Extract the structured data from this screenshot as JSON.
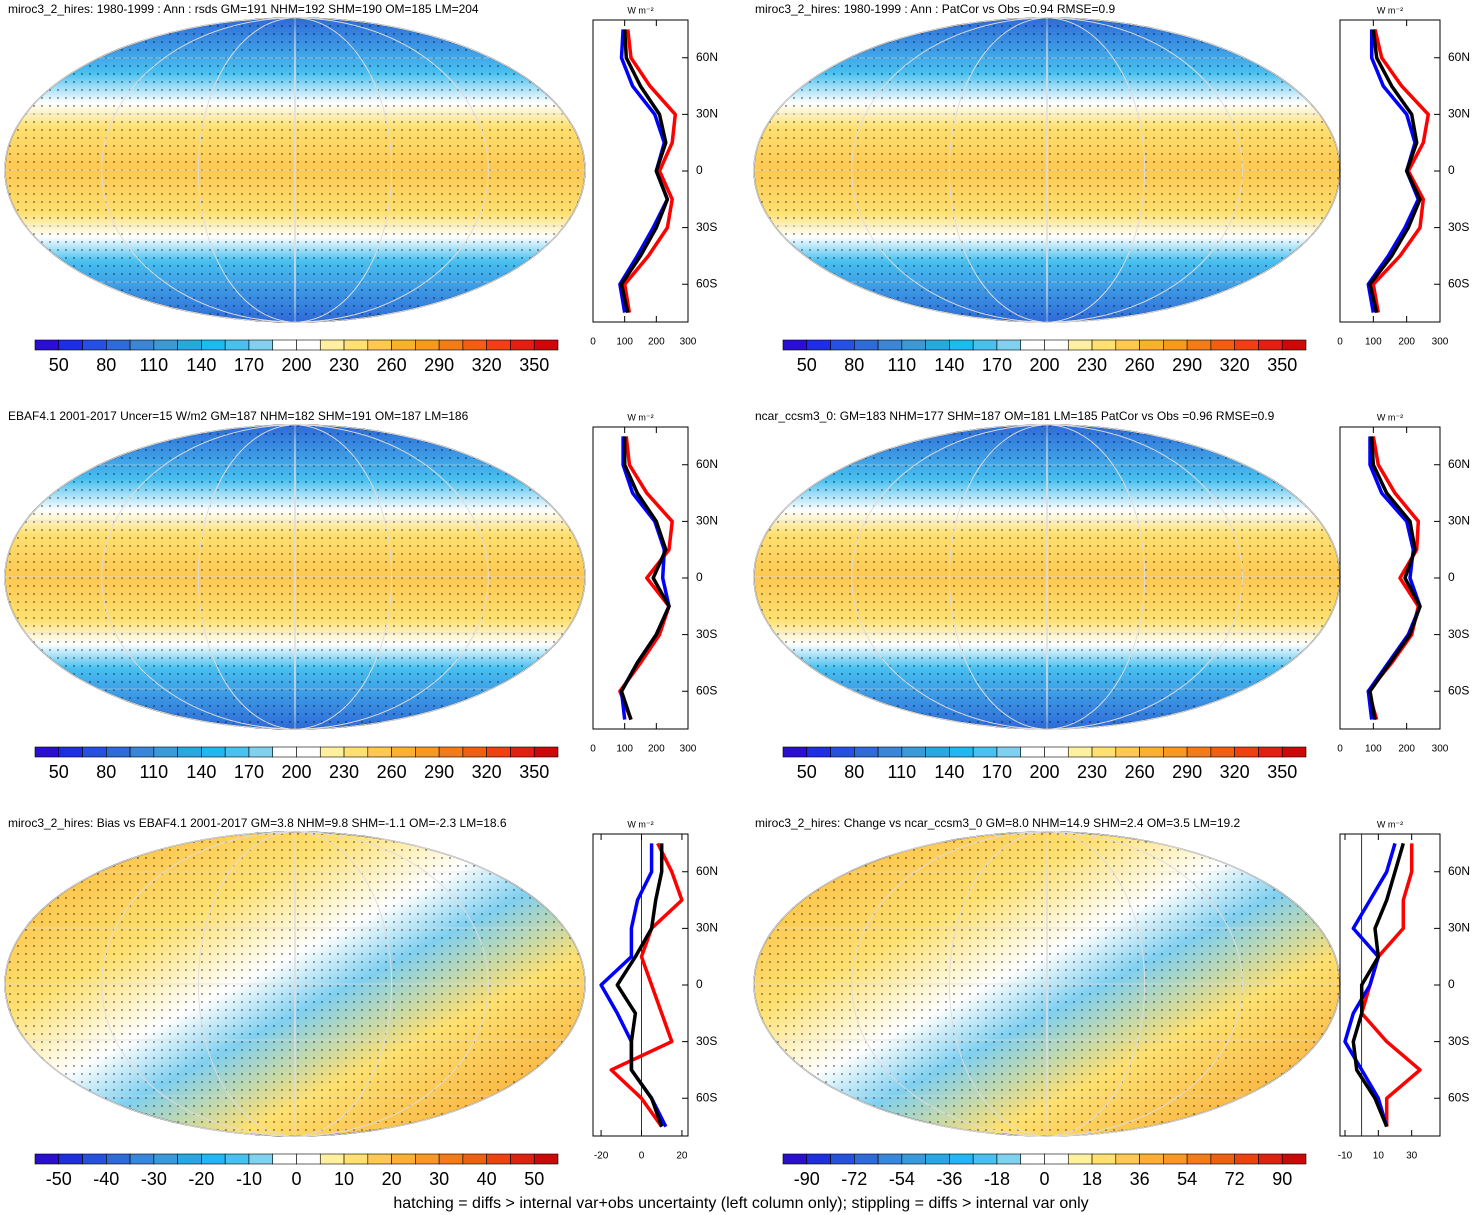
{
  "chart_data": [
    {
      "type": "line",
      "title": "miroc3_2_hires: 1980-1999 : Ann : rsds GM=191 NHM=192 SHM=190 OM=185 LM=204",
      "units": "W m⁻²",
      "colorbar_labels": [
        50,
        80,
        110,
        140,
        170,
        200,
        230,
        260,
        290,
        320,
        350
      ],
      "y": [
        75,
        60,
        45,
        30,
        15,
        0,
        -15,
        -30,
        -45,
        -60,
        -75
      ],
      "ylim": [
        -80,
        80
      ],
      "yticks": [
        {
          "value": 60,
          "label": "60N"
        },
        {
          "value": 30,
          "label": "30N"
        },
        0,
        {
          "value": -30,
          "label": "30S"
        },
        {
          "value": -60,
          "label": "60S"
        }
      ],
      "xlim": [
        0,
        300
      ],
      "xticks": [
        0,
        100,
        200,
        300
      ],
      "series": [
        {
          "color": "#ff0000",
          "values": [
            110,
            120,
            180,
            260,
            250,
            210,
            250,
            235,
            175,
            100,
            115
          ]
        },
        {
          "color": "#0000ff",
          "values": [
            95,
            90,
            125,
            195,
            225,
            200,
            235,
            190,
            140,
            85,
            100
          ]
        },
        {
          "color": "#000000",
          "values": [
            100,
            105,
            150,
            210,
            230,
            200,
            235,
            200,
            150,
            90,
            110
          ]
        }
      ]
    },
    {
      "type": "line",
      "title": "miroc3_2_hires: 1980-1999 : Ann : PatCor vs Obs =0.94 RMSE=0.9",
      "units": "W m⁻²",
      "colorbar_labels": [
        50,
        80,
        110,
        140,
        170,
        200,
        230,
        260,
        290,
        320,
        350
      ],
      "y": [
        75,
        60,
        45,
        30,
        15,
        0,
        -15,
        -30,
        -45,
        -60,
        -75
      ],
      "ylim": [
        -80,
        80
      ],
      "yticks": [
        {
          "value": 60,
          "label": "60N"
        },
        {
          "value": 30,
          "label": "30N"
        },
        0,
        {
          "value": -30,
          "label": "30S"
        },
        {
          "value": -60,
          "label": "60S"
        }
      ],
      "xlim": [
        0,
        300
      ],
      "xticks": [
        0,
        100,
        200,
        300
      ],
      "series": [
        {
          "color": "#ff0000",
          "values": [
            105,
            125,
            185,
            265,
            250,
            205,
            250,
            240,
            180,
            100,
            115
          ]
        },
        {
          "color": "#0000ff",
          "values": [
            95,
            95,
            130,
            200,
            225,
            200,
            235,
            195,
            145,
            85,
            100
          ]
        },
        {
          "color": "#000000",
          "values": [
            100,
            110,
            155,
            215,
            230,
            200,
            240,
            205,
            155,
            90,
            110
          ]
        }
      ]
    },
    {
      "type": "line",
      "title": "EBAF4.1 2001-2017 Uncer=15 W/m2 GM=187 NHM=182 SHM=191 OM=187 LM=186",
      "units": "W m⁻²",
      "colorbar_labels": [
        50,
        80,
        110,
        140,
        170,
        200,
        230,
        260,
        290,
        320,
        350
      ],
      "y": [
        75,
        60,
        45,
        30,
        15,
        0,
        -15,
        -30,
        -45,
        -60,
        -75
      ],
      "ylim": [
        -80,
        80
      ],
      "yticks": [
        {
          "value": 60,
          "label": "60N"
        },
        {
          "value": 30,
          "label": "30N"
        },
        0,
        {
          "value": -30,
          "label": "30S"
        },
        {
          "value": -60,
          "label": "60S"
        }
      ],
      "xlim": [
        0,
        300
      ],
      "xticks": [
        0,
        100,
        200,
        300
      ],
      "series": [
        {
          "color": "#ff0000",
          "values": [
            105,
            115,
            170,
            250,
            240,
            170,
            240,
            210,
            150,
            85,
            120
          ]
        },
        {
          "color": "#0000ff",
          "values": [
            95,
            95,
            125,
            195,
            225,
            220,
            240,
            200,
            140,
            90,
            100
          ]
        },
        {
          "color": "#000000",
          "values": [
            100,
            100,
            140,
            200,
            230,
            190,
            240,
            200,
            140,
            90,
            120
          ]
        }
      ]
    },
    {
      "type": "line",
      "title": "ncar_ccsm3_0: GM=183 NHM=177 SHM=187 OM=181 LM=185 PatCor vs Obs =0.96 RMSE=0.9",
      "units": "W m⁻²",
      "colorbar_labels": [
        50,
        80,
        110,
        140,
        170,
        200,
        230,
        260,
        290,
        320,
        350
      ],
      "y": [
        75,
        60,
        45,
        30,
        15,
        0,
        -15,
        -30,
        -45,
        -60,
        -75
      ],
      "ylim": [
        -80,
        80
      ],
      "yticks": [
        {
          "value": 60,
          "label": "60N"
        },
        {
          "value": 30,
          "label": "30N"
        },
        0,
        {
          "value": -30,
          "label": "30S"
        },
        {
          "value": -60,
          "label": "60S"
        }
      ],
      "xlim": [
        0,
        300
      ],
      "xticks": [
        0,
        100,
        200,
        300
      ],
      "series": [
        {
          "color": "#ff0000",
          "values": [
            100,
            115,
            165,
            235,
            230,
            180,
            235,
            215,
            155,
            85,
            110
          ]
        },
        {
          "color": "#0000ff",
          "values": [
            90,
            90,
            125,
            200,
            220,
            210,
            240,
            205,
            145,
            85,
            95
          ]
        },
        {
          "color": "#000000",
          "values": [
            95,
            100,
            140,
            210,
            225,
            195,
            240,
            210,
            150,
            90,
            105
          ]
        }
      ]
    },
    {
      "type": "line",
      "title": "miroc3_2_hires: Bias vs EBAF4.1 2001-2017 GM=3.8 NHM=9.8 SHM=-1.1 OM=-2.3 LM=18.6",
      "units": "W m⁻²",
      "colorbar_labels": [
        -50,
        -40,
        -30,
        -20,
        -10,
        0,
        10,
        20,
        30,
        40,
        50
      ],
      "y": [
        75,
        60,
        45,
        30,
        15,
        0,
        -15,
        -30,
        -45,
        -60,
        -75
      ],
      "ylim": [
        -80,
        80
      ],
      "yticks": [
        {
          "value": 60,
          "label": "60N"
        },
        {
          "value": 30,
          "label": "30N"
        },
        0,
        {
          "value": -30,
          "label": "30S"
        },
        {
          "value": -60,
          "label": "60S"
        }
      ],
      "xlim": [
        -24,
        23
      ],
      "xticks": [
        -20,
        0,
        20
      ],
      "series": [
        {
          "color": "#ff0000",
          "values": [
            8,
            15,
            20,
            5,
            0,
            5,
            10,
            15,
            -15,
            0,
            10
          ]
        },
        {
          "color": "#0000ff",
          "values": [
            5,
            5,
            -2,
            -5,
            -5,
            -20,
            -12,
            -5,
            -5,
            5,
            12
          ]
        },
        {
          "color": "#000000",
          "values": [
            10,
            10,
            7,
            5,
            -3,
            -12,
            -3,
            -5,
            -5,
            5,
            10
          ]
        }
      ]
    },
    {
      "type": "line",
      "title": "miroc3_2_hires: Change vs ncar_ccsm3_0 GM=8.0 NHM=14.9 SHM=2.4 OM=3.5 LM=19.2",
      "units": "W m⁻²",
      "colorbar_labels": [
        -90,
        -72,
        -54,
        -36,
        -18,
        0,
        18,
        36,
        54,
        72,
        90
      ],
      "y": [
        75,
        60,
        45,
        30,
        15,
        0,
        -15,
        -30,
        -45,
        -60,
        -75
      ],
      "ylim": [
        -80,
        80
      ],
      "yticks": [
        {
          "value": 60,
          "label": "60N"
        },
        {
          "value": 30,
          "label": "30N"
        },
        0,
        {
          "value": -30,
          "label": "30S"
        },
        {
          "value": -60,
          "label": "60S"
        }
      ],
      "xlim": [
        -13,
        47
      ],
      "xticks": [
        -10,
        10,
        30
      ],
      "series": [
        {
          "color": "#ff0000",
          "values": [
            30,
            30,
            25,
            25,
            10,
            5,
            0,
            15,
            35,
            15,
            15
          ]
        },
        {
          "color": "#0000ff",
          "values": [
            20,
            15,
            5,
            -5,
            10,
            5,
            -5,
            -10,
            0,
            10,
            15
          ]
        },
        {
          "color": "#000000",
          "values": [
            25,
            20,
            15,
            8,
            10,
            0,
            0,
            -5,
            -3,
            8,
            15
          ]
        }
      ]
    }
  ],
  "colormap": [
    "#2a0fd0",
    "#1d2fe0",
    "#2650e0",
    "#2e6ad8",
    "#3a86d8",
    "#3a9ad8",
    "#28a8e0",
    "#20b8f0",
    "#48c0f0",
    "#80d0f0",
    "#ffffff",
    "#ffffff",
    "#fff0a0",
    "#ffe070",
    "#ffc850",
    "#fbb030",
    "#f89820",
    "#f47c18",
    "#f06010",
    "#ee4010",
    "#e02010",
    "#cc0808"
  ],
  "caption": "hatching = diffs > internal var+obs uncertainty (left column only); stippling = diffs > internal var only"
}
